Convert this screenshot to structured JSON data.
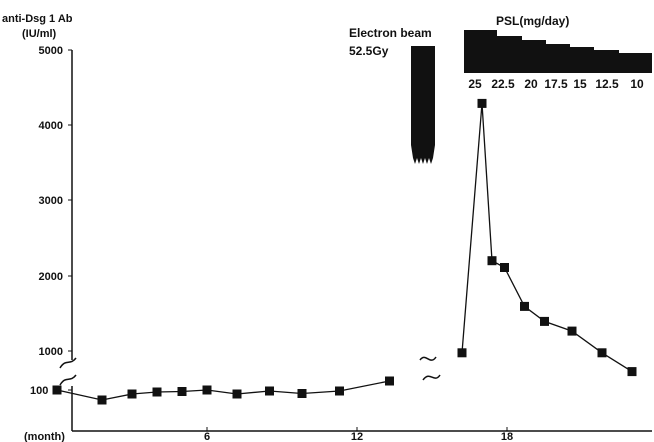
{
  "chart_data": {
    "type": "line",
    "ylabel": [
      "anti-Dsg 1 Ab",
      "(IU/ml)"
    ],
    "xlabel": "(month)",
    "x_ticks": [
      {
        "label": "6",
        "value": 6
      },
      {
        "label": "12",
        "value": 12
      },
      {
        "label": "18",
        "value": 18
      }
    ],
    "y_ticks_upper": [
      "5000",
      "4000",
      "3000",
      "2000",
      "1000"
    ],
    "y_ticks_lower": [
      "100"
    ],
    "y_axis_break": true,
    "series": [
      {
        "segment": "before_break",
        "points": [
          {
            "x": 0.0,
            "y": 100
          },
          {
            "x": 1.8,
            "y": 80
          },
          {
            "x": 3.0,
            "y": 92
          },
          {
            "x": 4.0,
            "y": 96
          },
          {
            "x": 5.0,
            "y": 97
          },
          {
            "x": 6.0,
            "y": 100
          },
          {
            "x": 7.2,
            "y": 92
          },
          {
            "x": 8.5,
            "y": 98
          },
          {
            "x": 9.8,
            "y": 93
          },
          {
            "x": 11.3,
            "y": 98
          },
          {
            "x": 13.3,
            "y": 118
          }
        ]
      },
      {
        "segment": "after_break",
        "points": [
          {
            "x": 16.2,
            "y": 970
          },
          {
            "x": 17.0,
            "y": 4300
          },
          {
            "x": 17.4,
            "y": 2200
          },
          {
            "x": 17.9,
            "y": 2110
          },
          {
            "x": 18.7,
            "y": 1590
          },
          {
            "x": 19.5,
            "y": 1390
          },
          {
            "x": 20.6,
            "y": 1260
          },
          {
            "x": 21.8,
            "y": 970
          },
          {
            "x": 23.0,
            "y": 720
          }
        ]
      }
    ],
    "annotations": {
      "electron_beam": {
        "title": "Electron beam",
        "dose": "52.5Gy"
      },
      "psl": {
        "title": "PSL(mg/day)",
        "doses": [
          "25",
          "22.5",
          "20",
          "17.5",
          "15",
          "12.5",
          "10"
        ]
      }
    }
  }
}
